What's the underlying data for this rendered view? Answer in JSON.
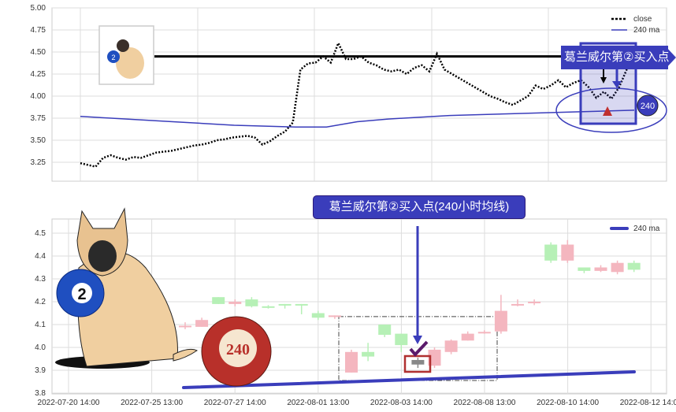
{
  "chart_data": [
    {
      "type": "line",
      "position": "top",
      "yticks": [
        "5.00",
        "4.75",
        "4.50",
        "4.25",
        "4.00",
        "3.75",
        "3.50",
        "3.25"
      ],
      "ylim": [
        3.04,
        5.0
      ],
      "legend": {
        "placement": "top-right",
        "entries": [
          "close",
          "240 ma"
        ]
      },
      "series": [
        {
          "name": "close",
          "style": "dotted",
          "color": "#000000",
          "values": [
            3.24,
            3.22,
            3.2,
            3.3,
            3.33,
            3.3,
            3.28,
            3.31,
            3.3,
            3.33,
            3.36,
            3.37,
            3.38,
            3.4,
            3.42,
            3.44,
            3.45,
            3.47,
            3.5,
            3.51,
            3.53,
            3.54,
            3.55,
            3.53,
            3.45,
            3.49,
            3.55,
            3.6,
            3.7,
            4.3,
            4.37,
            4.38,
            4.45,
            4.38,
            4.6,
            4.42,
            4.42,
            4.45,
            4.38,
            4.35,
            4.3,
            4.28,
            4.3,
            4.25,
            4.32,
            4.35,
            4.28,
            4.48,
            4.3,
            4.25,
            4.2,
            4.15,
            4.1,
            4.05,
            4.0,
            3.97,
            3.93,
            3.9,
            3.95,
            4.0,
            4.12,
            4.08,
            4.12,
            4.18,
            4.1,
            4.15,
            4.18,
            4.1,
            3.98,
            4.05,
            3.97,
            4.1,
            4.3,
            4.45
          ]
        },
        {
          "name": "240 ma",
          "style": "solid",
          "color": "#3a3dbb",
          "values": [
            3.77,
            3.75,
            3.73,
            3.71,
            3.69,
            3.67,
            3.66,
            3.65,
            3.65,
            3.71,
            3.74,
            3.76,
            3.78,
            3.79,
            3.8,
            3.81,
            3.82,
            3.83,
            3.84
          ]
        }
      ],
      "annotations": {
        "level_line": 4.45,
        "banner": "葛兰威尔第②买入点",
        "badge": "240"
      }
    },
    {
      "type": "candlestick",
      "position": "bottom",
      "yticks": [
        "4.5",
        "4.4",
        "4.3",
        "4.2",
        "4.1",
        "4.0",
        "3.9",
        "3.8"
      ],
      "ylim": [
        3.8,
        4.56
      ],
      "xticks": [
        "2022-07-20 14:00",
        "2022-07-25 13:00",
        "2022-07-27 14:00",
        "2022-08-01 13:00",
        "2022-08-03 14:00",
        "2022-08-08 13:00",
        "2022-08-10 14:00",
        "2022-08-12 14:00"
      ],
      "legend": {
        "placement": "top-right",
        "entries": [
          "240 ma"
        ]
      },
      "candles": [
        {
          "o": 4.09,
          "c": 4.095,
          "h": 4.11,
          "l": 4.08
        },
        {
          "o": 4.09,
          "c": 4.12,
          "h": 4.13,
          "l": 4.09
        },
        {
          "o": 4.22,
          "c": 4.19,
          "h": 4.22,
          "l": 4.19
        },
        {
          "o": 4.19,
          "c": 4.2,
          "h": 4.21,
          "l": 4.18
        },
        {
          "o": 4.21,
          "c": 4.18,
          "h": 4.22,
          "l": 4.175
        },
        {
          "o": 4.18,
          "c": 4.175,
          "h": 4.185,
          "l": 4.17
        },
        {
          "o": 4.19,
          "c": 4.185,
          "h": 4.19,
          "l": 4.17
        },
        {
          "o": 4.19,
          "c": 4.188,
          "h": 4.19,
          "l": 4.145
        },
        {
          "o": 4.15,
          "c": 4.13,
          "h": 4.16,
          "l": 4.12
        },
        {
          "o": 4.135,
          "c": 4.14,
          "h": 4.14,
          "l": 4.125
        },
        {
          "o": 3.89,
          "c": 3.98,
          "h": 3.99,
          "l": 3.89
        },
        {
          "o": 3.98,
          "c": 3.96,
          "h": 4.02,
          "l": 3.94
        },
        {
          "o": 4.1,
          "c": 4.055,
          "h": 4.1,
          "l": 4.045
        },
        {
          "o": 4.06,
          "c": 4.01,
          "h": 4.06,
          "l": 3.98
        },
        {
          "o": 3.925,
          "c": 3.945,
          "h": 3.955,
          "l": 3.91,
          "highlight": true
        },
        {
          "o": 3.92,
          "c": 3.99,
          "h": 4.0,
          "l": 3.91
        },
        {
          "o": 3.98,
          "c": 4.03,
          "h": 4.035,
          "l": 3.97
        },
        {
          "o": 4.03,
          "c": 4.06,
          "h": 4.07,
          "l": 4.03
        },
        {
          "o": 4.065,
          "c": 4.068,
          "h": 4.075,
          "l": 4.06
        },
        {
          "o": 4.07,
          "c": 4.16,
          "h": 4.23,
          "l": 4.06
        },
        {
          "o": 4.185,
          "c": 4.19,
          "h": 4.21,
          "l": 4.18
        },
        {
          "o": 4.2,
          "c": 4.2,
          "h": 4.21,
          "l": 4.185
        },
        {
          "o": 4.45,
          "c": 4.38,
          "h": 4.46,
          "l": 4.37
        },
        {
          "o": 4.38,
          "c": 4.45,
          "h": 4.47,
          "l": 4.37
        },
        {
          "o": 4.35,
          "c": 4.335,
          "h": 4.35,
          "l": 4.325
        },
        {
          "o": 4.335,
          "c": 4.35,
          "h": 4.36,
          "l": 4.33
        },
        {
          "o": 4.33,
          "c": 4.37,
          "h": 4.38,
          "l": 4.32
        },
        {
          "o": 4.37,
          "c": 4.34,
          "h": 4.38,
          "l": 4.33
        }
      ],
      "ma": {
        "name": "240 ma",
        "start": 3.824,
        "end": 3.893,
        "color": "#3a3dbb"
      },
      "box_range": [
        3.855,
        4.135
      ],
      "colors": {
        "up": "#f4b6bf",
        "down": "#b6f0b6",
        "highlight": "#888888"
      },
      "annotations": {
        "banner": "葛兰威尔第②买入点(240小时均线)",
        "ball_label": "240",
        "dog_ball_label": "2"
      }
    }
  ]
}
